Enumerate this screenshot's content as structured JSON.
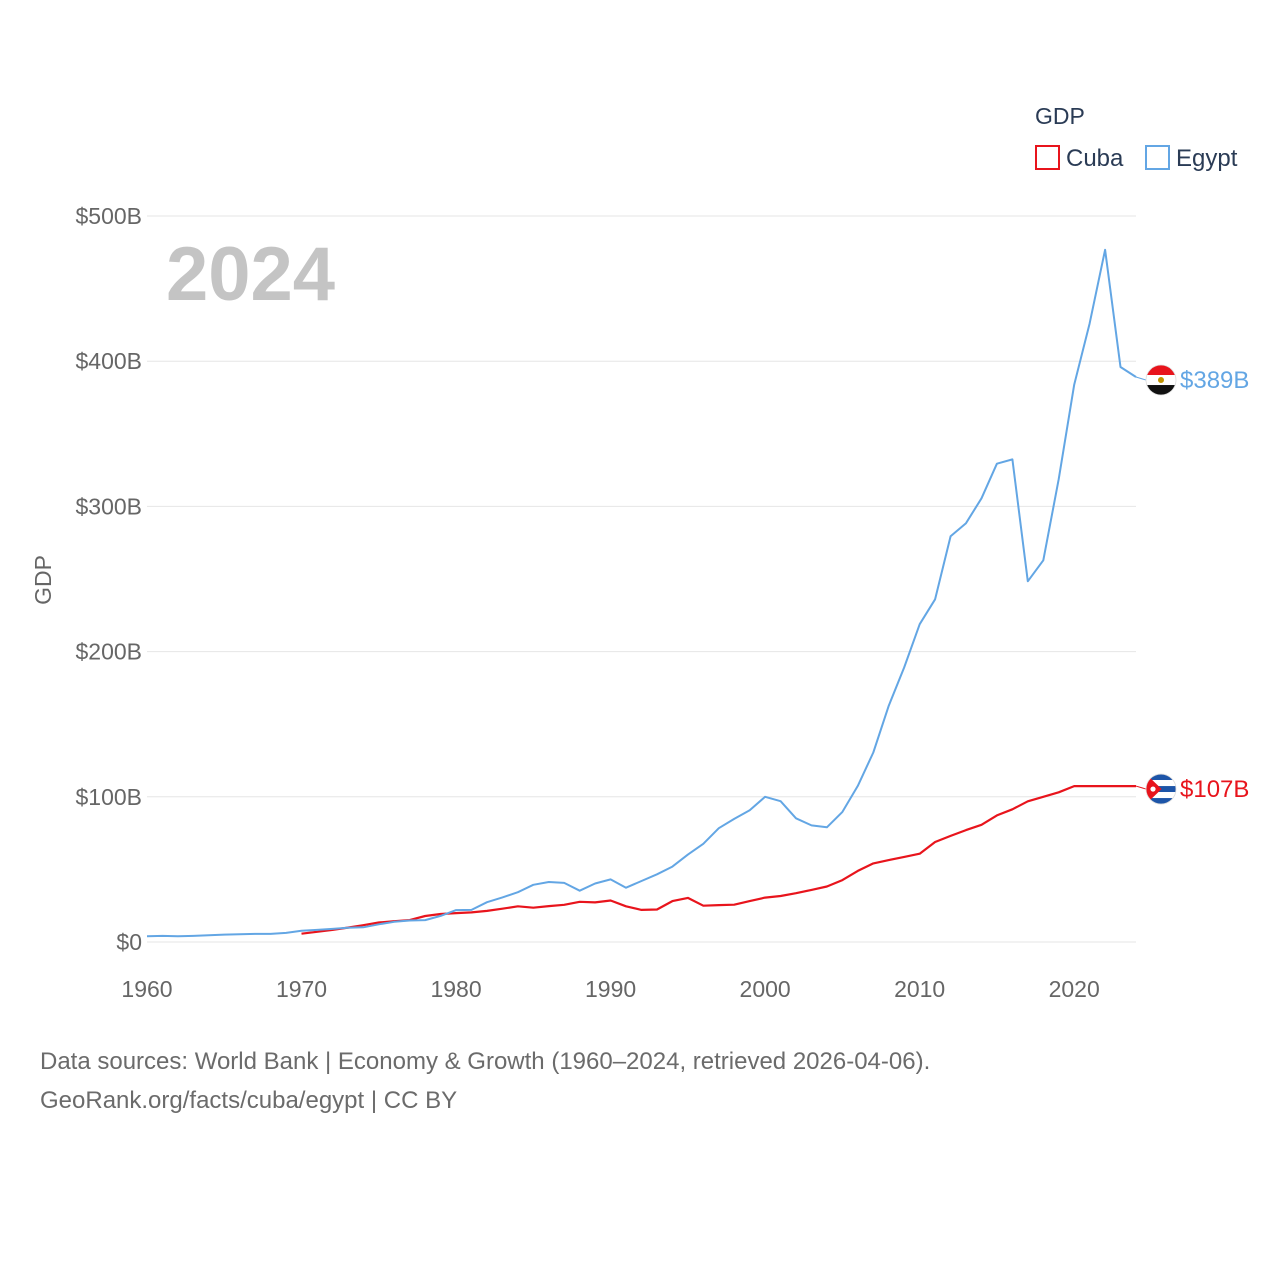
{
  "chart_data": {
    "type": "line",
    "title": "GDP",
    "year_label": "2024",
    "ylabel": "GDP",
    "xlabel": "",
    "xlim": [
      1960,
      2024
    ],
    "ylim": [
      0,
      500
    ],
    "x_ticks": [
      1960,
      1970,
      1980,
      1990,
      2000,
      2010,
      2020
    ],
    "x_tick_labels": [
      "1960",
      "1970",
      "1980",
      "1990",
      "2000",
      "2010",
      "2020"
    ],
    "y_ticks": [
      0,
      100,
      200,
      300,
      400,
      500
    ],
    "y_tick_labels": [
      "$0",
      "$100B",
      "$200B",
      "$300B",
      "$400B",
      "$500B"
    ],
    "grid": true,
    "legend": {
      "title": "GDP",
      "placement": "top-right"
    },
    "series": [
      {
        "name": "Cuba",
        "color": "#e8141c",
        "end_label": "$107B",
        "flag": "cuba-flag",
        "x": [
          1970,
          1971,
          1972,
          1973,
          1974,
          1975,
          1976,
          1977,
          1978,
          1979,
          1980,
          1981,
          1982,
          1983,
          1984,
          1985,
          1986,
          1987,
          1988,
          1989,
          1990,
          1991,
          1992,
          1993,
          1994,
          1995,
          1996,
          1997,
          1998,
          1999,
          2000,
          2001,
          2002,
          2003,
          2004,
          2005,
          2006,
          2007,
          2008,
          2009,
          2010,
          2011,
          2012,
          2013,
          2014,
          2015,
          2016,
          2017,
          2018,
          2019,
          2020,
          2021,
          2022,
          2023,
          2024
        ],
        "values": [
          5.7,
          7.0,
          8.3,
          9.9,
          11.6,
          13.4,
          14.3,
          15.1,
          17.9,
          19.3,
          19.9,
          20.4,
          21.4,
          22.9,
          24.6,
          23.6,
          24.7,
          25.6,
          27.7,
          27.3,
          28.6,
          24.6,
          22.1,
          22.4,
          28.2,
          30.4,
          25.0,
          25.4,
          25.7,
          28.2,
          30.6,
          31.7,
          33.6,
          35.9,
          38.2,
          42.6,
          49.0,
          54.1,
          56.4,
          58.6,
          60.8,
          68.9,
          73.1,
          77.1,
          80.7,
          87.2,
          91.4,
          96.9,
          100.0,
          103.1,
          107.4,
          107.4,
          107.4,
          107.4,
          107.4
        ]
      },
      {
        "name": "Egypt",
        "color": "#63a6e4",
        "end_label": "$389B",
        "flag": "egypt-flag",
        "x": [
          1960,
          1961,
          1962,
          1963,
          1964,
          1965,
          1966,
          1967,
          1968,
          1969,
          1970,
          1971,
          1972,
          1973,
          1974,
          1975,
          1976,
          1977,
          1978,
          1979,
          1980,
          1981,
          1982,
          1983,
          1984,
          1985,
          1986,
          1987,
          1988,
          1989,
          1990,
          1991,
          1992,
          1993,
          1994,
          1995,
          1996,
          1997,
          1998,
          1999,
          2000,
          2001,
          2002,
          2003,
          2004,
          2005,
          2006,
          2007,
          2008,
          2009,
          2010,
          2011,
          2012,
          2013,
          2014,
          2015,
          2016,
          2017,
          2018,
          2019,
          2020,
          2021,
          2022,
          2023,
          2024
        ],
        "values": [
          3.9,
          4.2,
          3.9,
          4.2,
          4.7,
          5.1,
          5.4,
          5.6,
          5.6,
          6.3,
          7.7,
          8.3,
          9.0,
          9.8,
          10.1,
          12.2,
          13.9,
          14.8,
          15.1,
          18.0,
          22.0,
          22.1,
          27.4,
          30.7,
          34.3,
          39.4,
          41.3,
          40.7,
          35.3,
          40.3,
          43.1,
          37.4,
          42.0,
          46.6,
          51.9,
          60.2,
          67.6,
          78.4,
          84.8,
          90.7,
          100.0,
          97.0,
          85.2,
          80.3,
          79.0,
          89.6,
          107.5,
          130.5,
          162.8,
          189.1,
          218.9,
          236.0,
          279.4,
          288.4,
          305.6,
          329.4,
          332.4,
          248.4,
          262.9,
          318.7,
          383.8,
          425.9,
          476.7,
          396.0,
          389.1
        ]
      }
    ]
  },
  "footer": {
    "source_line1": "Data sources: World Bank | Economy & Growth (1960–2024, retrieved 2026-04-06).",
    "source_line2": "GeoRank.org/facts/cuba/egypt | CC BY"
  },
  "colors": {
    "cuba_red": "#e8141c",
    "cuba_blue": "#1d55a8",
    "egypt_red": "#e8141c",
    "egypt_black": "#111111",
    "egypt_eagle": "#c09300"
  }
}
